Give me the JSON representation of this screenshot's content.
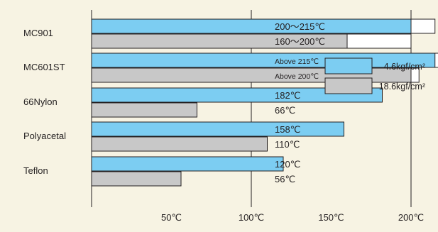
{
  "chart_data": {
    "type": "bar",
    "orientation": "horizontal",
    "title": "",
    "xlabel": "",
    "ylabel": "",
    "categories": [
      "MC901",
      "MC601ST",
      "66Nylon",
      "Polyacetal",
      "Teflon"
    ],
    "series": [
      {
        "name": "4.6kgf/cm²",
        "color": "#7ccdf2",
        "values": [
          200,
          215,
          182,
          158,
          120
        ],
        "range_max": [
          215,
          220,
          null,
          null,
          null
        ],
        "labels": [
          "200～215℃",
          "Above 215℃",
          "182℃",
          "158℃",
          "120℃"
        ]
      },
      {
        "name": "18.6kgf/cm²",
        "color": "#c8c8c8",
        "values": [
          160,
          200,
          66,
          110,
          56
        ],
        "range_max": [
          200,
          205,
          null,
          null,
          null
        ],
        "labels": [
          "160～200℃",
          "Above 200℃",
          "66℃",
          "110℃",
          "56℃"
        ]
      }
    ],
    "x_ticks": [
      50,
      100,
      150,
      200
    ],
    "x_tick_labels": [
      "50℃",
      "100℃",
      "150℃",
      "200℃"
    ],
    "xlim": [
      0,
      220
    ],
    "grid": "vertical lines at 0, 100, 200",
    "legend_position": "right"
  }
}
